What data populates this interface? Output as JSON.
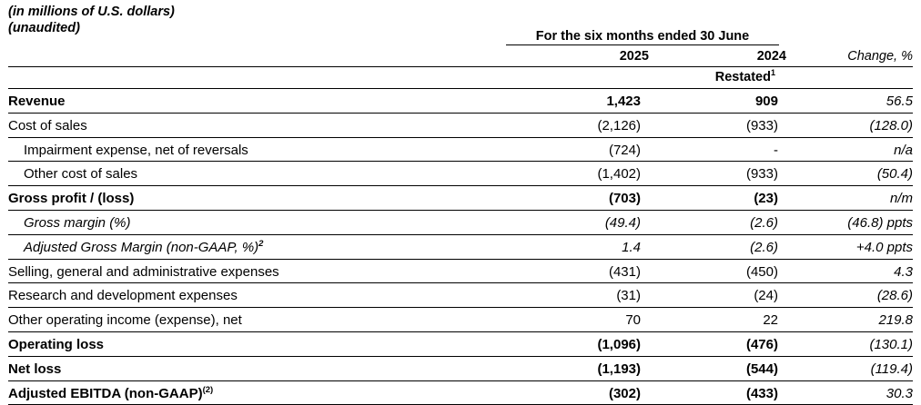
{
  "header": {
    "units_line1": "(in millions of U.S. dollars)",
    "units_line2": "(unaudited)",
    "period": "For the six months ended 30 June",
    "col_2025": "2025",
    "col_2024": "2024",
    "col_change": "Change, %",
    "restated": "Restated",
    "restated_note": "1"
  },
  "rows": [
    {
      "label": "Revenue",
      "v2025": "1,423",
      "v2024": "909",
      "change": "56.5"
    },
    {
      "label": "Cost of sales",
      "v2025": "(2,126)",
      "v2024": "(933)",
      "change": "(128.0)"
    },
    {
      "label": "Impairment expense, net of reversals",
      "v2025": "(724)",
      "v2024": "-",
      "change": "n/a"
    },
    {
      "label": "Other cost of sales",
      "v2025": "(1,402)",
      "v2024": "(933)",
      "change": "(50.4)"
    },
    {
      "label": "Gross profit / (loss)",
      "v2025": "(703)",
      "v2024": "(23)",
      "change": "n/m"
    },
    {
      "label": "Gross margin (%)",
      "v2025": "(49.4)",
      "v2024": "(2.6)",
      "change": "(46.8) ppts"
    },
    {
      "label": "Adjusted Gross Margin (non-GAAP, %)",
      "note": "2",
      "v2025": "1.4",
      "v2024": "(2.6)",
      "change": "+4.0 ppts"
    },
    {
      "label": "Selling, general and administrative expenses",
      "v2025": "(431)",
      "v2024": "(450)",
      "change": "4.3"
    },
    {
      "label": "Research and development expenses",
      "v2025": "(31)",
      "v2024": "(24)",
      "change": "(28.6)"
    },
    {
      "label": "Other operating income (expense), net",
      "v2025": "70",
      "v2024": "22",
      "change": "219.8"
    },
    {
      "label": "Operating loss",
      "v2025": "(1,096)",
      "v2024": "(476)",
      "change": "(130.1)"
    },
    {
      "label": "Net loss",
      "v2025": "(1,193)",
      "v2024": "(544)",
      "change": "(119.4)"
    },
    {
      "label": "Adjusted EBITDA (non-GAAP)",
      "note": "(2)",
      "v2025": "(302)",
      "v2024": "(433)",
      "change": "30.3"
    }
  ]
}
